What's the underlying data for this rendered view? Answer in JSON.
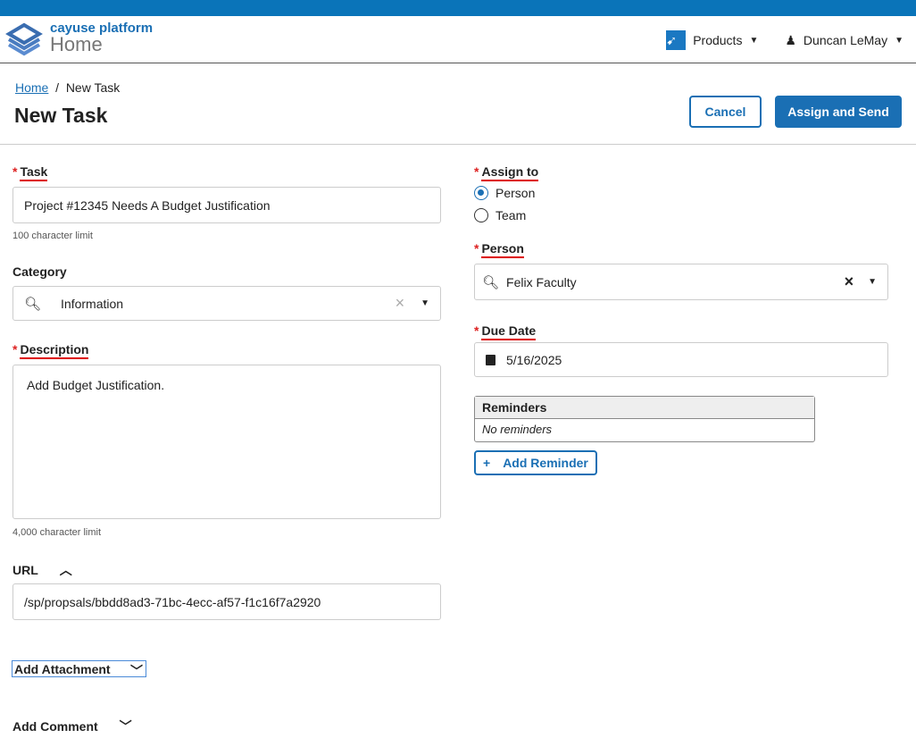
{
  "header": {
    "brand": "cayuse platform",
    "app": "Home",
    "products": "Products",
    "user": "Duncan LeMay"
  },
  "breadcrumb": {
    "home": "Home",
    "sep": "/",
    "current": "New Task"
  },
  "page_title": "New Task",
  "buttons": {
    "cancel": "Cancel",
    "assign": "Assign and Send"
  },
  "task": {
    "label": "Task",
    "value": "Project #12345 Needs A Budget Justification",
    "hint": "100 character limit"
  },
  "category": {
    "label": "Category",
    "value": "Information"
  },
  "description": {
    "label": "Description",
    "value": "Add Budget Justification.",
    "hint": "4,000 character limit"
  },
  "url": {
    "label": "URL",
    "value": "/sp/propsals/bbdd8ad3-71bc-4ecc-af57-f1c16f7a2920"
  },
  "attachment": {
    "label": "Add Attachment"
  },
  "comment": {
    "label": "Add Comment"
  },
  "assign_to": {
    "label": "Assign to",
    "options": [
      "Person",
      "Team"
    ],
    "selected": "Person"
  },
  "person": {
    "label": "Person",
    "value": "Felix Faculty"
  },
  "due_date": {
    "label": "Due Date",
    "value": "5/16/2025"
  },
  "reminders": {
    "header": "Reminders",
    "empty": "No reminders",
    "add": "Add Reminder"
  },
  "required_mark": "*"
}
